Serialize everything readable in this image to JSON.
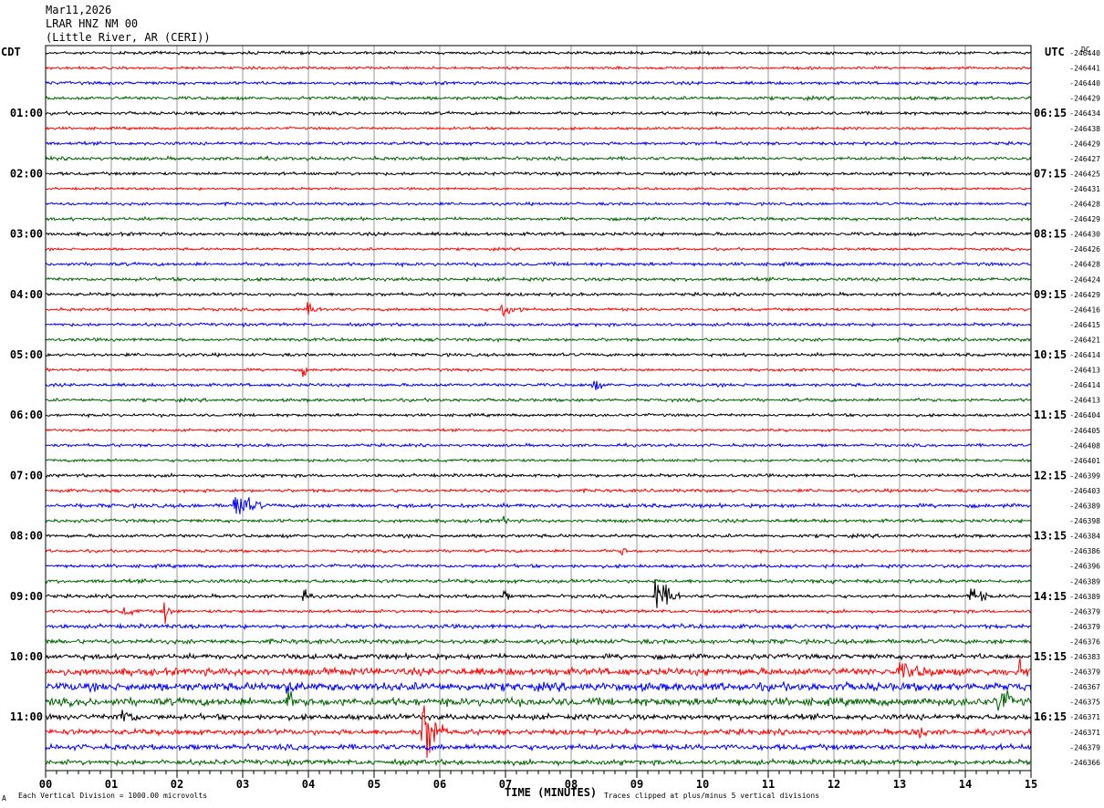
{
  "header": {
    "date": "Mar11,2026",
    "station": "LRAR HNZ NM 00",
    "location": "(Little River, AR (CERI))"
  },
  "left_axis_title": "CDT",
  "right_axis_title": "UTC",
  "right_dc_label": "DC",
  "footer": {
    "scale_note": "Each Vertical Division = 1000.00 microvolts",
    "clip_note": "Traces clipped at plus/minus 5 vertical divisions",
    "corner_mark": "A"
  },
  "trace_colors": [
    "#000000",
    "#ff0000",
    "#0000ff",
    "#006400"
  ],
  "chart_data": {
    "type": "line",
    "title": "",
    "xlabel": "TIME (MINUTES)",
    "ylabel": "",
    "xlim": [
      0,
      15
    ],
    "x_ticks": [
      "00",
      "01",
      "02",
      "03",
      "04",
      "05",
      "06",
      "07",
      "08",
      "09",
      "10",
      "11",
      "12",
      "13",
      "14",
      "15"
    ],
    "left_time_labels": [
      {
        "row": 4,
        "label": "01:00"
      },
      {
        "row": 8,
        "label": "02:00"
      },
      {
        "row": 12,
        "label": "03:00"
      },
      {
        "row": 16,
        "label": "04:00"
      },
      {
        "row": 20,
        "label": "05:00"
      },
      {
        "row": 24,
        "label": "06:00"
      },
      {
        "row": 28,
        "label": "07:00"
      },
      {
        "row": 32,
        "label": "08:00"
      },
      {
        "row": 36,
        "label": "09:00"
      },
      {
        "row": 40,
        "label": "10:00"
      },
      {
        "row": 44,
        "label": "11:00"
      }
    ],
    "right_time_labels": [
      {
        "row": 4,
        "label": "06:15"
      },
      {
        "row": 8,
        "label": "07:15"
      },
      {
        "row": 12,
        "label": "08:15"
      },
      {
        "row": 16,
        "label": "09:15"
      },
      {
        "row": 20,
        "label": "10:15"
      },
      {
        "row": 24,
        "label": "11:15"
      },
      {
        "row": 28,
        "label": "12:15"
      },
      {
        "row": 32,
        "label": "13:15"
      },
      {
        "row": 36,
        "label": "14:15"
      },
      {
        "row": 40,
        "label": "15:15"
      },
      {
        "row": 44,
        "label": "16:15"
      }
    ],
    "dc_offsets": [
      "-246440",
      "-246441",
      "-246440",
      "-246429",
      "-246434",
      "-246438",
      "-246429",
      "-246427",
      "-246425",
      "-246431",
      "-246428",
      "-246429",
      "-246430",
      "-246426",
      "-246428",
      "-246424",
      "-246429",
      "-246416",
      "-246415",
      "-246421",
      "-246414",
      "-246413",
      "-246414",
      "-246413",
      "-246404",
      "-246405",
      "-246408",
      "-246401",
      "-246399",
      "-246403",
      "-246389",
      "-246398",
      "-246384",
      "-246386",
      "-246396",
      "-246389",
      "-246389",
      "-246379",
      "-246379",
      "-246376",
      "-246383",
      "-246379",
      "-246367",
      "-246375",
      "-246371",
      "-246371",
      "-246379",
      "-246366"
    ],
    "noise_levels": [
      1.2,
      1.1,
      1.3,
      1.4,
      1.3,
      1.1,
      1.3,
      1.4,
      1.3,
      1.0,
      1.2,
      1.3,
      1.4,
      1.1,
      1.4,
      1.4,
      1.3,
      1.2,
      1.3,
      1.3,
      1.3,
      1.1,
      1.3,
      1.3,
      1.2,
      1.0,
      1.2,
      1.2,
      1.3,
      1.3,
      1.6,
      1.4,
      1.4,
      1.2,
      1.4,
      1.5,
      1.4,
      1.3,
      1.7,
      1.9,
      2.1,
      3.0,
      3.4,
      3.2,
      2.3,
      2.3,
      2.3,
      2.1
    ],
    "events": [
      {
        "row": 17,
        "minute": 4.0,
        "amplitude": 4,
        "duration": 0.3
      },
      {
        "row": 17,
        "minute": 6.95,
        "amplitude": 6,
        "duration": 0.35
      },
      {
        "row": 21,
        "minute": 3.95,
        "amplitude": 5,
        "duration": 0.05
      },
      {
        "row": 22,
        "minute": 8.35,
        "amplitude": 5,
        "duration": 0.15
      },
      {
        "row": 30,
        "minute": 2.9,
        "amplitude": 12,
        "duration": 0.4
      },
      {
        "row": 31,
        "minute": 7.0,
        "amplitude": 5,
        "duration": 0.05
      },
      {
        "row": 33,
        "minute": 8.8,
        "amplitude": 3,
        "duration": 0.05
      },
      {
        "row": 35,
        "minute": 11.9,
        "amplitude": 4,
        "duration": 0.15
      },
      {
        "row": 36,
        "minute": 3.95,
        "amplitude": 5,
        "duration": 0.08
      },
      {
        "row": 36,
        "minute": 7.0,
        "amplitude": 4,
        "duration": 0.08
      },
      {
        "row": 36,
        "minute": 9.3,
        "amplitude": 14,
        "duration": 0.4
      },
      {
        "row": 36,
        "minute": 14.1,
        "amplitude": 8,
        "duration": 0.3
      },
      {
        "row": 37,
        "minute": 1.2,
        "amplitude": 3,
        "duration": 0.3
      },
      {
        "row": 37,
        "minute": 1.82,
        "amplitude": 11,
        "duration": 0.1
      },
      {
        "row": 41,
        "minute": 13.0,
        "amplitude": 6,
        "duration": 0.6
      },
      {
        "row": 41,
        "minute": 14.85,
        "amplitude": 8,
        "duration": 0.1
      },
      {
        "row": 42,
        "minute": 3.7,
        "amplitude": 6,
        "duration": 0.2
      },
      {
        "row": 43,
        "minute": 3.7,
        "amplitude": 8,
        "duration": 0.1
      },
      {
        "row": 43,
        "minute": 14.5,
        "amplitude": 14,
        "duration": 0.25
      },
      {
        "row": 44,
        "minute": 1.15,
        "amplitude": 7,
        "duration": 0.3
      },
      {
        "row": 45,
        "minute": 5.75,
        "amplitude": 30,
        "duration": 0.35
      },
      {
        "row": 45,
        "minute": 13.2,
        "amplitude": 7,
        "duration": 0.25
      }
    ]
  }
}
